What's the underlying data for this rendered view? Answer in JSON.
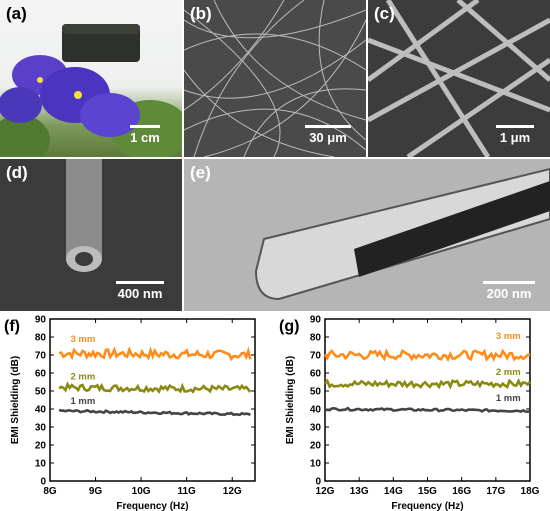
{
  "panels": {
    "a": {
      "label": "(a)",
      "scale": "1 cm"
    },
    "b": {
      "label": "(b)",
      "scale": "30 μm"
    },
    "c": {
      "label": "(c)",
      "scale": "1 μm"
    },
    "d": {
      "label": "(d)",
      "scale": "400 nm"
    },
    "e": {
      "label": "(e)",
      "scale": "200 nm"
    }
  },
  "chart_data": [
    {
      "panel_label": "(f)",
      "type": "line",
      "xlabel": "Frequency (Hz)",
      "ylabel": "EMI Shielding (dB)",
      "xlim": [
        8,
        12.5
      ],
      "ylim": [
        0,
        90
      ],
      "xticks": [
        "8G",
        "9G",
        "10G",
        "11G",
        "12G"
      ],
      "yticks": [
        "0",
        "10",
        "20",
        "30",
        "40",
        "50",
        "60",
        "70",
        "80",
        "90"
      ],
      "series": [
        {
          "name": "3 mm",
          "color": "#ff8c1a",
          "x": [
            8.2,
            12.4
          ],
          "y": [
            71,
            70
          ]
        },
        {
          "name": "2 mm",
          "color": "#8a8a12",
          "x": [
            8.2,
            12.4
          ],
          "y": [
            52,
            51
          ]
        },
        {
          "name": "1 mm",
          "color": "#444444",
          "x": [
            8.2,
            12.4
          ],
          "y": [
            39,
            37
          ]
        }
      ]
    },
    {
      "panel_label": "(g)",
      "type": "line",
      "xlabel": "Frequency (Hz)",
      "ylabel": "EMI Shielding (dB)",
      "xlim": [
        12,
        18
      ],
      "ylim": [
        0,
        90
      ],
      "xticks": [
        "12G",
        "13G",
        "14G",
        "15G",
        "16G",
        "17G",
        "18G"
      ],
      "yticks": [
        "0",
        "10",
        "20",
        "30",
        "40",
        "50",
        "60",
        "70",
        "80",
        "90"
      ],
      "series": [
        {
          "name": "3 mm",
          "color": "#ff8c1a",
          "x": [
            12,
            18
          ],
          "y": [
            70,
            70
          ]
        },
        {
          "name": "2 mm",
          "color": "#8a8a12",
          "x": [
            12,
            18
          ],
          "y": [
            54,
            54
          ]
        },
        {
          "name": "1 mm",
          "color": "#444444",
          "x": [
            12,
            18
          ],
          "y": [
            40,
            39
          ]
        }
      ]
    }
  ]
}
